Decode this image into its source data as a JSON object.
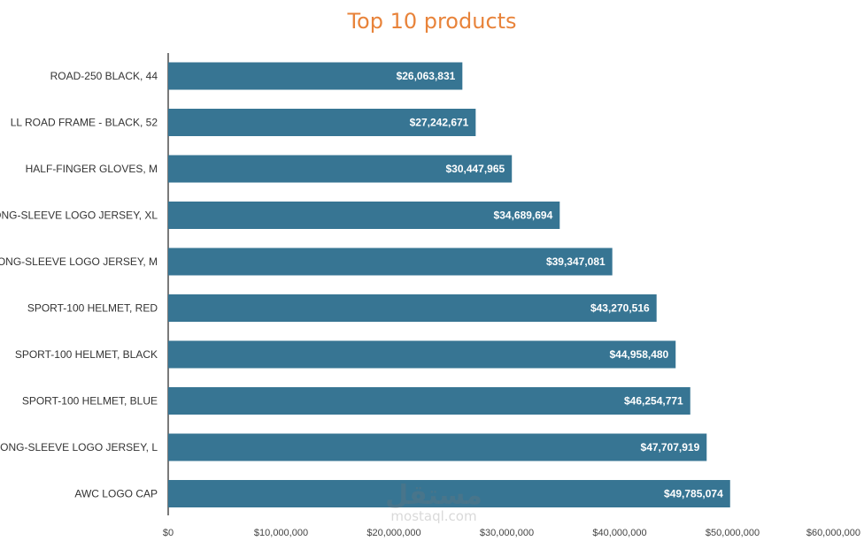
{
  "chart_data": {
    "type": "bar",
    "orientation": "horizontal",
    "title": "Top 10 products",
    "categories": [
      "ROAD-250 BLACK, 44",
      "LL ROAD FRAME - BLACK, 52",
      "HALF-FINGER GLOVES, M",
      "LONG-SLEEVE LOGO JERSEY, XL",
      "LONG-SLEEVE LOGO JERSEY, M",
      "SPORT-100 HELMET, RED",
      "SPORT-100 HELMET, BLACK",
      "SPORT-100 HELMET, BLUE",
      "LONG-SLEEVE LOGO JERSEY, L",
      "AWC LOGO CAP"
    ],
    "values": [
      26063831,
      27242671,
      30447965,
      34689694,
      39347081,
      43270516,
      44958480,
      46254771,
      47707919,
      49785074
    ],
    "data_labels": [
      "$26,063,831",
      "$27,242,671",
      "$30,447,965",
      "$34,689,694",
      "$39,347,081",
      "$43,270,516",
      "$44,958,480",
      "$46,254,771",
      "$47,707,919",
      "$49,785,074"
    ],
    "xlim": [
      0,
      60000000
    ],
    "x_ticks": [
      "$0",
      "$10,000,000",
      "$20,000,000",
      "$30,000,000",
      "$40,000,000",
      "$50,000,000",
      "$60,000,000"
    ],
    "xlabel": "",
    "ylabel": "",
    "grid": false,
    "legend": "none",
    "bar_color": "#377593",
    "title_color": "#E8833A"
  },
  "watermark": {
    "arabic": "مستقل",
    "latin": "mostaql.com"
  }
}
